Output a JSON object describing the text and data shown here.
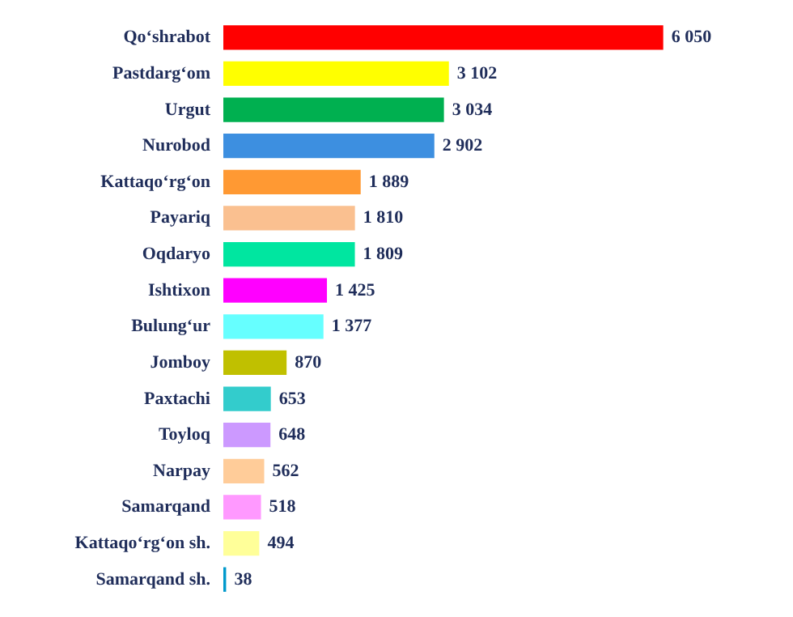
{
  "chart_data": {
    "type": "bar",
    "orientation": "horizontal",
    "categories": [
      "Qo‘shrabot",
      "Pastdarg‘om",
      "Urgut",
      "Nurobod",
      "Kattaqo‘rg‘on",
      "Payariq",
      "Oqdaryo",
      "Ishtixon",
      "Bulung‘ur",
      "Jomboy",
      "Paxtachi",
      "Toyloq",
      "Narpay",
      "Samarqand",
      "Kattaqo‘rg‘on sh.",
      "Samarqand sh."
    ],
    "values": [
      6050,
      3102,
      3034,
      2902,
      1889,
      1810,
      1809,
      1425,
      1377,
      870,
      653,
      648,
      562,
      518,
      494,
      38
    ],
    "colors": [
      "#ff0000",
      "#ffff00",
      "#00b050",
      "#3d8fe0",
      "#ff9933",
      "#fac090",
      "#00e6a0",
      "#ff00ff",
      "#66ffff",
      "#c0c000",
      "#33cccc",
      "#cc99ff",
      "#ffcc99",
      "#ff99ff",
      "#ffff99",
      "#0099cc"
    ],
    "value_labels": [
      "6 050",
      "3 102",
      "3 034",
      "2 902",
      "1 889",
      "1 810",
      "1 809",
      "1 425",
      "1 377",
      "870",
      "653",
      "648",
      "562",
      "518",
      "494",
      "38"
    ]
  }
}
